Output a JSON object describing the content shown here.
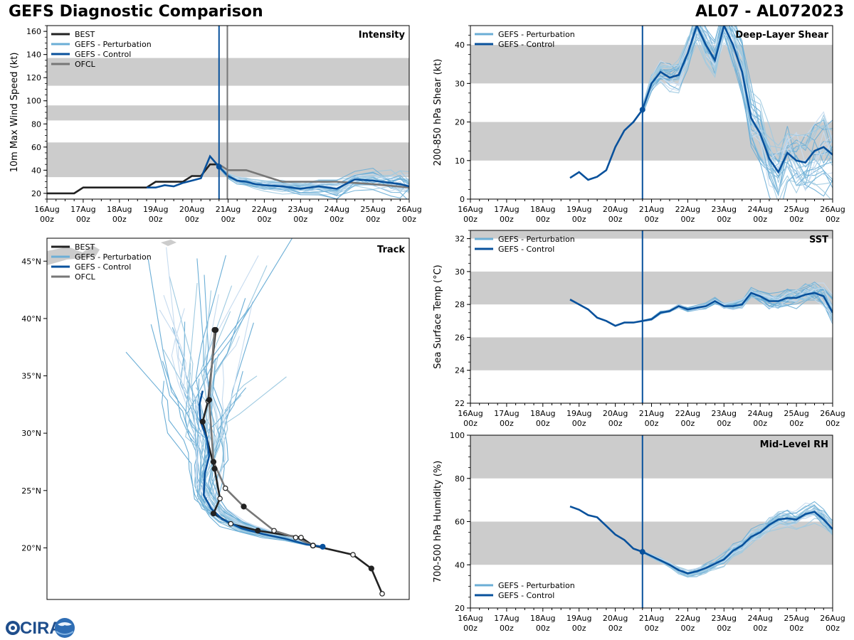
{
  "header": {
    "title": "GEFS Diagnostic Comparison",
    "storm_id": "AL07 - AL072023"
  },
  "logo": {
    "text": "CIRA"
  },
  "colors": {
    "best": "#222222",
    "perturbation": "#6baed6",
    "control": "#08519c",
    "ofcl": "#777777",
    "band": "#cccccc"
  },
  "legend_labels": {
    "best": "BEST",
    "perturbation": "GEFS - Perturbation",
    "control": "GEFS - Control",
    "ofcl": "OFCL"
  },
  "time_axis": {
    "ticks": [
      {
        "top": "16Aug",
        "bottom": "00z"
      },
      {
        "top": "17Aug",
        "bottom": "00z"
      },
      {
        "top": "18Aug",
        "bottom": "00z"
      },
      {
        "top": "19Aug",
        "bottom": "00z"
      },
      {
        "top": "20Aug",
        "bottom": "00z"
      },
      {
        "top": "21Aug",
        "bottom": "00z"
      },
      {
        "top": "22Aug",
        "bottom": "00z"
      },
      {
        "top": "23Aug",
        "bottom": "00z"
      },
      {
        "top": "24Aug",
        "bottom": "00z"
      },
      {
        "top": "25Aug",
        "bottom": "00z"
      },
      {
        "top": "26Aug",
        "bottom": "00z"
      }
    ]
  },
  "chart_data": [
    {
      "id": "intensity",
      "type": "line",
      "title": "Intensity",
      "ylabel": "10m Max Wind Speed (kt)",
      "xlabel": "",
      "xlim": [
        0,
        10
      ],
      "ylim": [
        15,
        165
      ],
      "yticks": [
        20,
        40,
        60,
        80,
        100,
        120,
        140,
        160
      ],
      "bands": [
        [
          34,
          64
        ],
        [
          83,
          96
        ],
        [
          113,
          137
        ]
      ],
      "init_time": 4.75,
      "ofcl_time": 4.98,
      "legend": [
        "best",
        "perturbation",
        "control",
        "ofcl"
      ],
      "legend_position": "top-left",
      "best": {
        "x": [
          0,
          0.75,
          1.0,
          2.25,
          2.75,
          3.0,
          3.5,
          3.75,
          4.0,
          4.25,
          4.5,
          4.75
        ],
        "y": [
          20,
          20,
          25,
          25,
          25,
          30,
          30,
          30,
          35,
          35,
          45,
          45
        ]
      },
      "ofcl": {
        "x": [
          4.75,
          5.0,
          5.5,
          6.0,
          6.5,
          7.0,
          8.0,
          9.0,
          10.0
        ],
        "y": [
          45,
          40,
          40,
          35,
          30,
          30,
          30,
          28,
          25
        ]
      },
      "control": {
        "x": [
          2.75,
          3.0,
          3.25,
          3.5,
          3.75,
          4.0,
          4.25,
          4.5,
          4.75,
          5.0,
          5.25,
          5.5,
          5.75,
          6.0,
          6.5,
          7.0,
          7.5,
          8.0,
          8.5,
          9.0,
          9.5,
          9.75,
          10.0
        ],
        "y": [
          25,
          25,
          27,
          26,
          29,
          31,
          33,
          52,
          43,
          35,
          31,
          30,
          28,
          27,
          26,
          24,
          26,
          24,
          32,
          31,
          29,
          28,
          26
        ]
      },
      "markers": [
        {
          "x": 4.75,
          "y": 43
        }
      ],
      "perturbation_count": 28,
      "perturbation_spread": [
        [
          4.75,
          3
        ],
        [
          6.0,
          6
        ],
        [
          8.0,
          10
        ],
        [
          10.0,
          18
        ]
      ]
    },
    {
      "id": "shear",
      "type": "line",
      "title": "Deep-Layer Shear",
      "ylabel": "200-850 hPa Shear (kt)",
      "xlabel": "",
      "xlim": [
        0,
        10
      ],
      "ylim": [
        0,
        45
      ],
      "yticks": [
        0,
        10,
        20,
        30,
        40
      ],
      "bands": [
        [
          10,
          20
        ],
        [
          30,
          40
        ]
      ],
      "init_time": 4.75,
      "legend": [
        "perturbation",
        "control"
      ],
      "legend_position": "top-left",
      "control": {
        "x": [
          2.75,
          3.0,
          3.25,
          3.5,
          3.75,
          4.0,
          4.25,
          4.5,
          4.75,
          5.0,
          5.25,
          5.5,
          5.75,
          6.0,
          6.25,
          6.5,
          6.75,
          7.0,
          7.25,
          7.5,
          7.75,
          8.0,
          8.25,
          8.5,
          8.75,
          9.0,
          9.25,
          9.5,
          9.75,
          10.0
        ],
        "y": [
          5.5,
          7,
          5,
          5.8,
          7.5,
          13.5,
          17.8,
          20,
          23.2,
          30,
          33,
          31.5,
          32.2,
          37.8,
          45,
          40,
          36,
          45,
          40,
          33,
          21,
          17,
          10.5,
          7,
          12,
          10,
          9.5,
          12.5,
          13.5,
          11.5
        ]
      },
      "markers": [
        {
          "x": 4.75,
          "y": 23.2
        }
      ],
      "perturbation_count": 28,
      "perturbation_spread": [
        [
          4.75,
          3
        ],
        [
          6.0,
          6
        ],
        [
          7.0,
          8
        ],
        [
          8.0,
          12
        ],
        [
          10.0,
          14
        ]
      ]
    },
    {
      "id": "sst",
      "type": "line",
      "title": "SST",
      "ylabel": "Sea Surface Temp (°C)",
      "xlabel": "",
      "xlim": [
        0,
        10
      ],
      "ylim": [
        22,
        32.5
      ],
      "yticks": [
        22,
        24,
        26,
        28,
        30,
        32
      ],
      "bands": [
        [
          24,
          26
        ],
        [
          28,
          30
        ],
        [
          32,
          34
        ]
      ],
      "init_time": 4.75,
      "legend": [
        "perturbation",
        "control"
      ],
      "legend_position": "top-left",
      "control": {
        "x": [
          2.75,
          3.0,
          3.25,
          3.5,
          3.75,
          4.0,
          4.25,
          4.5,
          4.75,
          5.0,
          5.25,
          5.5,
          5.75,
          6.0,
          6.25,
          6.5,
          6.75,
          7.0,
          7.25,
          7.5,
          7.75,
          8.0,
          8.25,
          8.5,
          8.75,
          9.0,
          9.25,
          9.5,
          9.75,
          10.0
        ],
        "y": [
          28.3,
          28.0,
          27.7,
          27.2,
          27.0,
          26.7,
          26.9,
          26.9,
          27.0,
          27.1,
          27.5,
          27.6,
          27.9,
          27.7,
          27.8,
          27.9,
          28.2,
          27.9,
          27.9,
          28.0,
          28.7,
          28.5,
          28.2,
          28.2,
          28.4,
          28.4,
          28.6,
          28.7,
          28.5,
          27.5
        ]
      },
      "markers": [],
      "perturbation_count": 28,
      "perturbation_spread": [
        [
          4.75,
          0.1
        ],
        [
          7.0,
          0.3
        ],
        [
          9.0,
          0.8
        ],
        [
          10.0,
          1.5
        ]
      ]
    },
    {
      "id": "rh",
      "type": "line",
      "title": "Mid-Level RH",
      "ylabel": "700-500 hPa Humidity (%)",
      "xlabel": "",
      "xlim": [
        0,
        10
      ],
      "ylim": [
        20,
        100
      ],
      "yticks": [
        20,
        40,
        60,
        80,
        100
      ],
      "bands": [
        [
          40,
          60
        ],
        [
          80,
          100
        ]
      ],
      "init_time": 4.75,
      "legend": [
        "perturbation",
        "control"
      ],
      "legend_position": "bottom-left",
      "control": {
        "x": [
          2.75,
          3.0,
          3.25,
          3.5,
          3.75,
          4.0,
          4.25,
          4.5,
          4.75,
          5.0,
          5.25,
          5.5,
          5.75,
          6.0,
          6.25,
          6.5,
          6.75,
          7.0,
          7.25,
          7.5,
          7.75,
          8.0,
          8.25,
          8.5,
          8.75,
          9.0,
          9.25,
          9.5,
          9.75,
          10.0
        ],
        "y": [
          67,
          65.5,
          63,
          62,
          58,
          54,
          51.5,
          47.5,
          46,
          44,
          42,
          40,
          37.5,
          36,
          37,
          38.5,
          40.5,
          42.5,
          46.5,
          49,
          53,
          55,
          58.5,
          61,
          61.5,
          61,
          63.5,
          64.5,
          61,
          56.5
        ]
      },
      "markers": [
        {
          "x": 4.75,
          "y": 46
        }
      ],
      "perturbation_count": 28,
      "perturbation_spread": [
        [
          4.75,
          1
        ],
        [
          6.0,
          3
        ],
        [
          8.0,
          5
        ],
        [
          10.0,
          7
        ]
      ]
    },
    {
      "id": "track",
      "type": "line",
      "title": "Track",
      "ylabel": "",
      "xlabel": "",
      "xlim": [
        -82,
        -48.5
      ],
      "ylim": [
        15.5,
        47
      ],
      "yticks": [
        20,
        25,
        30,
        35,
        40,
        45
      ],
      "yticklabels": [
        "20°N",
        "25°N",
        "30°N",
        "35°N",
        "40°N",
        "45°N"
      ],
      "legend": [
        "best",
        "perturbation",
        "control",
        "ofcl"
      ],
      "legend_position": "top-left",
      "best": {
        "lon": [
          -51.0,
          -52.0,
          -53.7,
          -57.4,
          -58.5,
          -62.5,
          -65.0,
          -66.6,
          -66.0,
          -66.5,
          -67.6,
          -67.1,
          -66.4
        ],
        "lat": [
          16.0,
          18.2,
          19.4,
          20.2,
          20.9,
          21.5,
          22.1,
          23.0,
          24.3,
          26.9,
          31.0,
          32.8,
          39.0
        ],
        "filled": [
          false,
          true,
          false,
          true,
          false,
          true,
          false,
          true,
          false,
          true,
          true,
          false,
          true
        ]
      },
      "ofcl": {
        "lon": [
          -57.4,
          -59.0,
          -61.0,
          -63.8,
          -65.5,
          -66.6,
          -67.0,
          -66.5
        ],
        "lat": [
          20.2,
          20.9,
          21.5,
          23.6,
          25.2,
          27.5,
          32.9,
          39.0
        ],
        "filled": [
          false,
          false,
          false,
          true,
          false,
          true,
          true,
          true
        ]
      },
      "control": {
        "lon": [
          -56.5,
          -58.0,
          -60.0,
          -62.0,
          -64.0,
          -65.8,
          -66.8,
          -67.5,
          -67.4,
          -67.0,
          -67.2,
          -67.8,
          -67.9,
          -67.6
        ],
        "lat": [
          20.1,
          20.3,
          20.8,
          21.2,
          21.7,
          22.5,
          23.4,
          24.6,
          26.5,
          28.0,
          29.5,
          31.0,
          32.5,
          33.7
        ],
        "filled": [
          true,
          false,
          false,
          false,
          false,
          false,
          false,
          false,
          false,
          false,
          false,
          false,
          false,
          false
        ]
      },
      "perturbation_count": 40
    }
  ]
}
